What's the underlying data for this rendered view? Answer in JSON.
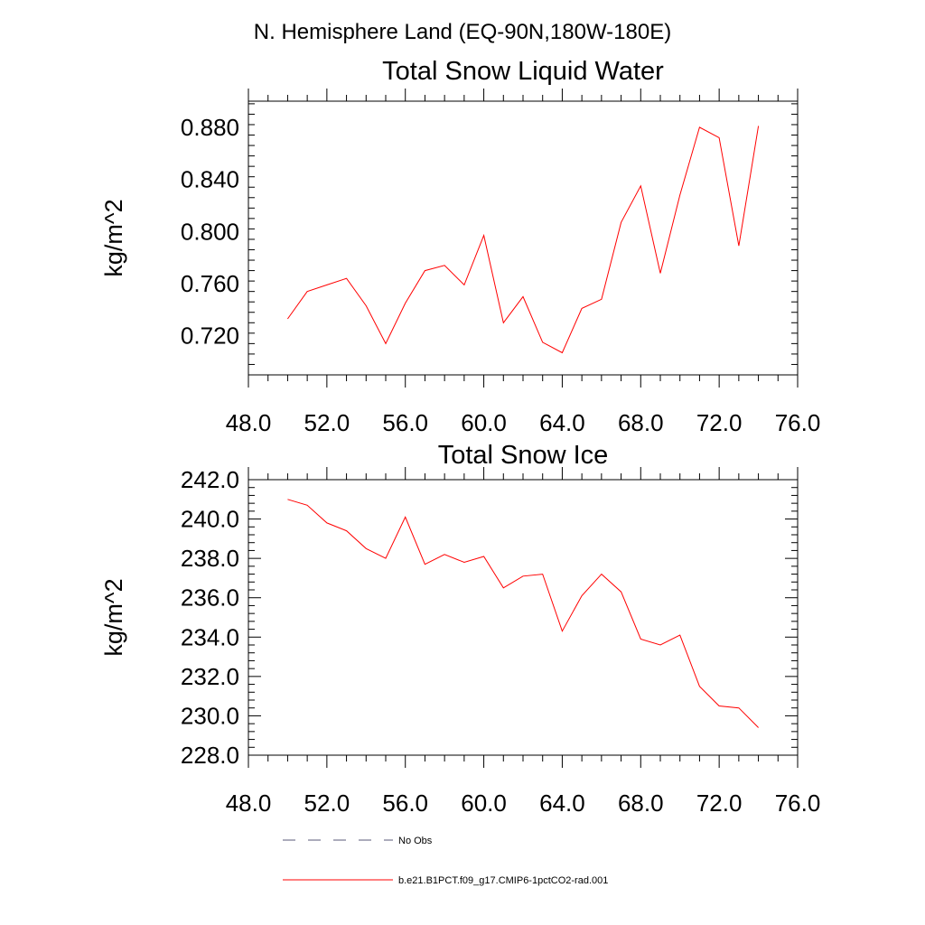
{
  "header": {
    "region_title": "N. Hemisphere Land (EQ-90N,180W-180E)"
  },
  "legend": {
    "entries": [
      {
        "label": "No Obs",
        "style": "dashed",
        "color": "#5a5a7a"
      },
      {
        "label": "b.e21.B1PCT.f09_g17.CMIP6-1pctCO2-rad.001",
        "style": "solid",
        "color": "#ff0000"
      }
    ]
  },
  "chart_data": [
    {
      "type": "line",
      "title": "Total Snow Liquid Water",
      "xlabel": "",
      "ylabel": "kg/m^2",
      "xlim": [
        48,
        76
      ],
      "ylim": [
        0.69,
        0.9
      ],
      "x_ticks": [
        "48.0",
        "52.0",
        "56.0",
        "60.0",
        "64.0",
        "68.0",
        "72.0",
        "76.0"
      ],
      "y_ticks": [
        0.72,
        0.76,
        0.8,
        0.84,
        0.88
      ],
      "y_tick_labels": [
        "0.720",
        "0.760",
        "0.800",
        "0.840",
        "0.880"
      ],
      "grid": false,
      "series": [
        {
          "color": "#ff0000",
          "x": [
            50,
            51,
            52,
            53,
            54,
            55,
            56,
            57,
            58,
            59,
            60,
            61,
            62,
            63,
            64,
            65,
            66,
            67,
            68,
            69,
            70,
            71,
            72,
            73,
            74
          ],
          "values": [
            0.733,
            0.754,
            0.759,
            0.764,
            0.743,
            0.714,
            0.745,
            0.77,
            0.774,
            0.759,
            0.797,
            0.73,
            0.75,
            0.715,
            0.707,
            0.741,
            0.748,
            0.807,
            0.835,
            0.768,
            0.828,
            0.88,
            0.872,
            0.789,
            0.881
          ]
        }
      ]
    },
    {
      "type": "line",
      "title": "Total Snow Ice",
      "xlabel": "",
      "ylabel": "kg/m^2",
      "xlim": [
        48,
        76
      ],
      "ylim": [
        228.0,
        242.0
      ],
      "x_ticks": [
        "48.0",
        "52.0",
        "56.0",
        "60.0",
        "64.0",
        "68.0",
        "72.0",
        "76.0"
      ],
      "y_ticks": [
        228,
        230,
        232,
        234,
        236,
        238,
        240,
        242
      ],
      "y_tick_labels": [
        "228.0",
        "230.0",
        "232.0",
        "234.0",
        "236.0",
        "238.0",
        "240.0",
        "242.0"
      ],
      "grid": false,
      "series": [
        {
          "color": "#ff0000",
          "x": [
            50,
            51,
            52,
            53,
            54,
            55,
            56,
            57,
            58,
            59,
            60,
            61,
            62,
            63,
            64,
            65,
            66,
            67,
            68,
            69,
            70,
            71,
            72,
            73,
            74
          ],
          "values": [
            241.0,
            240.7,
            239.8,
            239.4,
            238.5,
            238.0,
            240.1,
            237.7,
            238.2,
            237.8,
            238.1,
            236.5,
            237.1,
            237.2,
            234.3,
            236.1,
            237.2,
            236.3,
            233.9,
            233.6,
            234.1,
            231.5,
            230.5,
            230.4,
            229.4
          ]
        }
      ]
    }
  ]
}
